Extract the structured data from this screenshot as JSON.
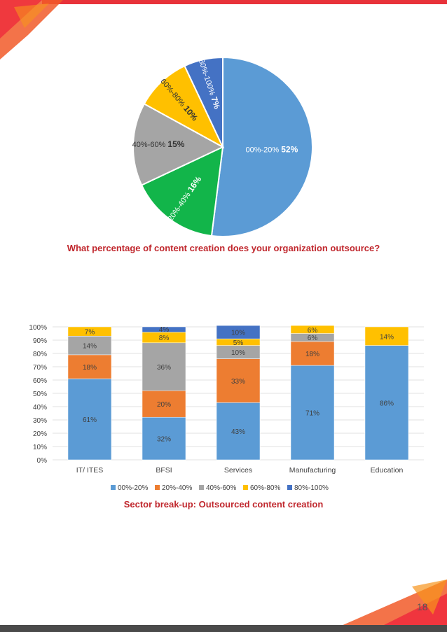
{
  "page_number": "18",
  "colors": [
    "#5b9bd5",
    "#ed7d31",
    "#a5a5a5",
    "#ffc000",
    "#4472c4"
  ],
  "pie_colors": [
    "#5b9bd5",
    "#12b54a",
    "#a5a5a5",
    "#ffc000",
    "#4472c4"
  ],
  "chart_data": [
    {
      "type": "pie",
      "title": "What percentage of content creation does your organization outsource?",
      "slices": [
        {
          "label": "00%-20%",
          "value": 52,
          "value_label": "52%"
        },
        {
          "label": "20%-40%",
          "value": 16,
          "value_label": "16%"
        },
        {
          "label": "40%-60%",
          "value": 15,
          "value_label": "15%"
        },
        {
          "label": "60%-80%",
          "value": 10,
          "value_label": "10%"
        },
        {
          "label": "80%-100%",
          "value": 7,
          "value_label": "7%"
        }
      ]
    },
    {
      "type": "bar",
      "stacked": true,
      "title": "Sector break-up: Outsourced content creation",
      "categories": [
        "IT/ ITES",
        "BFSI",
        "Services",
        "Manufacturing",
        "Education"
      ],
      "ylim": [
        0,
        100
      ],
      "yticks": [
        "0%",
        "10%",
        "20%",
        "30%",
        "40%",
        "50%",
        "60%",
        "70%",
        "80%",
        "90%",
        "100%"
      ],
      "legend_position": "bottom",
      "series": [
        {
          "name": "00%-20%",
          "values": [
            61,
            32,
            43,
            71,
            86
          ]
        },
        {
          "name": "20%-40%",
          "values": [
            18,
            20,
            33,
            18,
            0
          ]
        },
        {
          "name": "40%-60%",
          "values": [
            14,
            36,
            10,
            6,
            0
          ]
        },
        {
          "name": "60%-80%",
          "values": [
            7,
            8,
            5,
            6,
            14
          ]
        },
        {
          "name": "80%-100%",
          "values": [
            0,
            4,
            10,
            0,
            0
          ]
        }
      ]
    }
  ]
}
